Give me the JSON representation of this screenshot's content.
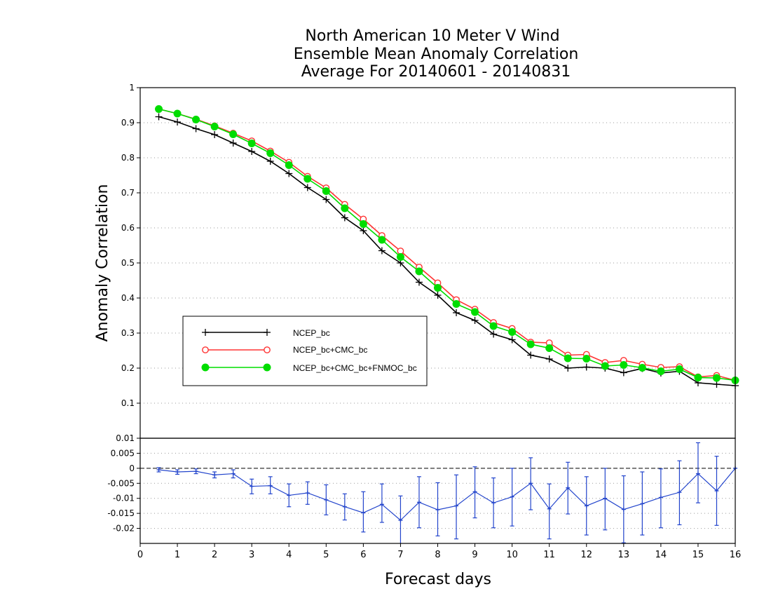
{
  "chart_data": [
    {
      "type": "line",
      "title": [
        "North American 10 Meter V Wind",
        "Ensemble Mean Anomaly Correlation",
        "Average For 20140601 - 20140831"
      ],
      "ylabel": "Anomaly Correlation",
      "ylim": [
        0,
        1
      ],
      "yticks": [
        "0.1",
        "0.2",
        "0.3",
        "0.4",
        "0.5",
        "0.6",
        "0.7",
        "0.8",
        "0.9",
        "1"
      ],
      "grid": "horizontal dotted",
      "legend_placement": "center-left",
      "x": [
        0.5,
        1,
        1.5,
        2,
        2.5,
        3,
        3.5,
        4,
        4.5,
        5,
        5.5,
        6,
        6.5,
        7,
        7.5,
        8,
        8.5,
        9,
        9.5,
        10,
        10.5,
        11,
        11.5,
        12,
        12.5,
        13,
        13.5,
        14,
        14.5,
        15,
        15.5,
        16
      ],
      "series": [
        {
          "name": "NCEP_bc",
          "color": "#000000",
          "marker": "plus",
          "values": [
            0.917,
            0.902,
            0.883,
            0.866,
            0.842,
            0.818,
            0.79,
            0.755,
            0.715,
            0.681,
            0.629,
            0.592,
            0.535,
            0.5,
            0.445,
            0.408,
            0.358,
            0.336,
            0.297,
            0.281,
            0.237,
            0.226,
            0.2,
            0.203,
            0.2,
            0.187,
            0.199,
            0.186,
            0.191,
            0.158,
            0.154,
            0.15
          ]
        },
        {
          "name": "NCEP_bc+CMC_bc",
          "color": "#ff3333",
          "marker": "open-circle",
          "values": [
            0.939,
            0.926,
            0.91,
            0.891,
            0.87,
            0.848,
            0.819,
            0.787,
            0.747,
            0.714,
            0.667,
            0.625,
            0.578,
            0.534,
            0.488,
            0.443,
            0.395,
            0.368,
            0.33,
            0.313,
            0.274,
            0.272,
            0.237,
            0.239,
            0.216,
            0.222,
            0.211,
            0.202,
            0.204,
            0.175,
            0.179,
            0.165
          ]
        },
        {
          "name": "NCEP_bc+CMC_bc+FNMOC_bc",
          "color": "#00dd00",
          "marker": "filled-circle",
          "values": [
            0.939,
            0.926,
            0.909,
            0.889,
            0.867,
            0.841,
            0.813,
            0.779,
            0.74,
            0.705,
            0.656,
            0.611,
            0.566,
            0.517,
            0.476,
            0.429,
            0.383,
            0.36,
            0.32,
            0.303,
            0.268,
            0.257,
            0.228,
            0.227,
            0.206,
            0.209,
            0.201,
            0.191,
            0.197,
            0.173,
            0.172,
            0.165
          ]
        }
      ]
    },
    {
      "type": "line",
      "subtype": "error-bar",
      "xlabel": "Forecast days",
      "ylim": [
        -0.025,
        0.01
      ],
      "yticks": [
        "0.01",
        "0.005",
        "0",
        "-0.005",
        "-0.01",
        "-0.015",
        "-0.02"
      ],
      "xticks": [
        "0",
        "1",
        "2",
        "3",
        "4",
        "5",
        "6",
        "7",
        "8",
        "9",
        "10",
        "11",
        "12",
        "13",
        "14",
        "15",
        "16"
      ],
      "xlim": [
        0,
        16
      ],
      "zero_line": "dashed",
      "grid": "horizontal dotted",
      "series": [
        {
          "color": "#2244cc",
          "marker": "plus",
          "x": [
            0.5,
            1,
            1.5,
            2,
            2.5,
            3,
            3.5,
            4,
            4.5,
            5,
            5.5,
            6,
            6.5,
            7,
            7.5,
            8,
            8.5,
            9,
            9.5,
            10,
            10.5,
            11,
            11.5,
            12,
            12.5,
            13,
            13.5,
            14,
            14.5,
            15,
            15.5,
            16
          ],
          "values": [
            -0.0005,
            -0.0012,
            -0.001,
            -0.0022,
            -0.0018,
            -0.006,
            -0.0058,
            -0.009,
            -0.0082,
            -0.0105,
            -0.0128,
            -0.0148,
            -0.012,
            -0.0173,
            -0.0113,
            -0.0138,
            -0.0125,
            -0.0078,
            -0.0115,
            -0.0095,
            -0.005,
            -0.0135,
            -0.0065,
            -0.0125,
            -0.01,
            -0.0137,
            -0.0118,
            -0.0097,
            -0.008,
            -0.0018,
            -0.0075,
            0.0
          ],
          "err_low": [
            -0.0012,
            -0.002,
            -0.0018,
            -0.0032,
            -0.0032,
            -0.0085,
            -0.0085,
            -0.0128,
            -0.012,
            -0.0155,
            -0.0172,
            -0.0212,
            -0.018,
            -0.0255,
            -0.0198,
            -0.0225,
            -0.0235,
            -0.0165,
            -0.0198,
            -0.0192,
            -0.0138,
            -0.0235,
            -0.0152,
            -0.0222,
            -0.0205,
            -0.0248,
            -0.0222,
            -0.0198,
            -0.0188,
            -0.0115,
            -0.019,
            0.0
          ],
          "err_high": [
            0.0002,
            -0.0005,
            -0.0002,
            -0.0012,
            -0.0005,
            -0.0036,
            -0.0028,
            -0.0052,
            -0.0045,
            -0.0055,
            -0.0085,
            -0.0078,
            -0.0052,
            -0.0092,
            -0.0028,
            -0.0048,
            -0.0022,
            0.0005,
            -0.0032,
            0.0,
            0.0035,
            -0.0052,
            0.002,
            -0.0028,
            0.0,
            -0.0025,
            -0.0012,
            -0.0002,
            0.0025,
            0.0085,
            0.004,
            0.0
          ]
        }
      ]
    }
  ],
  "legend": {
    "entries": [
      "NCEP_bc",
      "NCEP_bc+CMC_bc",
      "NCEP_bc+CMC_bc+FNMOC_bc"
    ]
  }
}
